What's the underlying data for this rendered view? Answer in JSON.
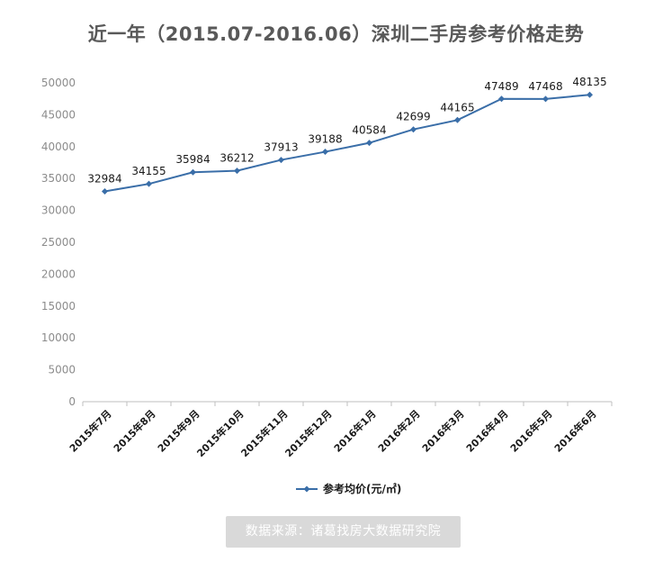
{
  "title": "近一年（2015.07-2016.06）深圳二手房参考价格走势",
  "source": "数据来源：诸葛找房大数据研究院",
  "colors": {
    "series": "#3a6ea8",
    "axis": "#bfbfbf",
    "title": "#595959",
    "badge": "#d9d9d9"
  },
  "chart_data": {
    "type": "line",
    "categories": [
      "2015年7月",
      "2015年8月",
      "2015年9月",
      "2015年10月",
      "2015年11月",
      "2015年12月",
      "2016年1月",
      "2016年2月",
      "2016年3月",
      "2016年4月",
      "2016年5月",
      "2016年6月"
    ],
    "series": [
      {
        "name": "参考均价(元/㎡)",
        "values": [
          32984,
          34155,
          35984,
          36212,
          37913,
          39188,
          40584,
          42699,
          44165,
          47489,
          47468,
          48135
        ]
      }
    ],
    "ylim": [
      0,
      50000
    ],
    "yticks": [
      0,
      5000,
      10000,
      15000,
      20000,
      25000,
      30000,
      35000,
      40000,
      45000,
      50000
    ],
    "grid": false,
    "legend": "bottom",
    "marker": "diamond",
    "data_labels": true
  }
}
